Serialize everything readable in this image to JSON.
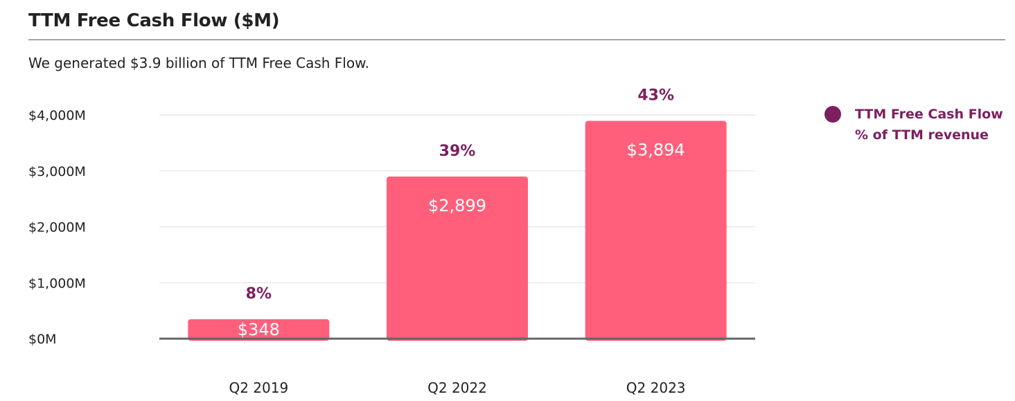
{
  "header": {
    "title": "TTM Free Cash Flow ($M)",
    "subtitle": "We generated $3.9 billion of TTM Free Cash Flow."
  },
  "legend": {
    "label": "TTM Free Cash Flow % of TTM revenue"
  },
  "colors": {
    "bar": "#FF5F7B",
    "accent": "#7B1F5F",
    "grid": "#DDDDDD",
    "axis": "#666666",
    "text": "#222222"
  },
  "chart_data": {
    "type": "bar",
    "title": "TTM Free Cash Flow ($M)",
    "xlabel": "",
    "ylabel": "",
    "categories": [
      "Q2 2019",
      "Q2 2022",
      "Q2 2023"
    ],
    "series": [
      {
        "values": [
          348,
          2899,
          3894
        ],
        "value_labels": [
          "$348",
          "$2,899",
          "$3,894"
        ]
      }
    ],
    "percent_labels": [
      "8%",
      "39%",
      "43%"
    ],
    "y_ticks": [
      0,
      1000,
      2000,
      3000,
      4000
    ],
    "y_tick_labels": [
      "$0M",
      "$1,000M",
      "$2,000M",
      "$3,000M",
      "$4,000M"
    ],
    "ylim": [
      0,
      4000
    ],
    "grid": true,
    "legend_position": "top-right"
  }
}
